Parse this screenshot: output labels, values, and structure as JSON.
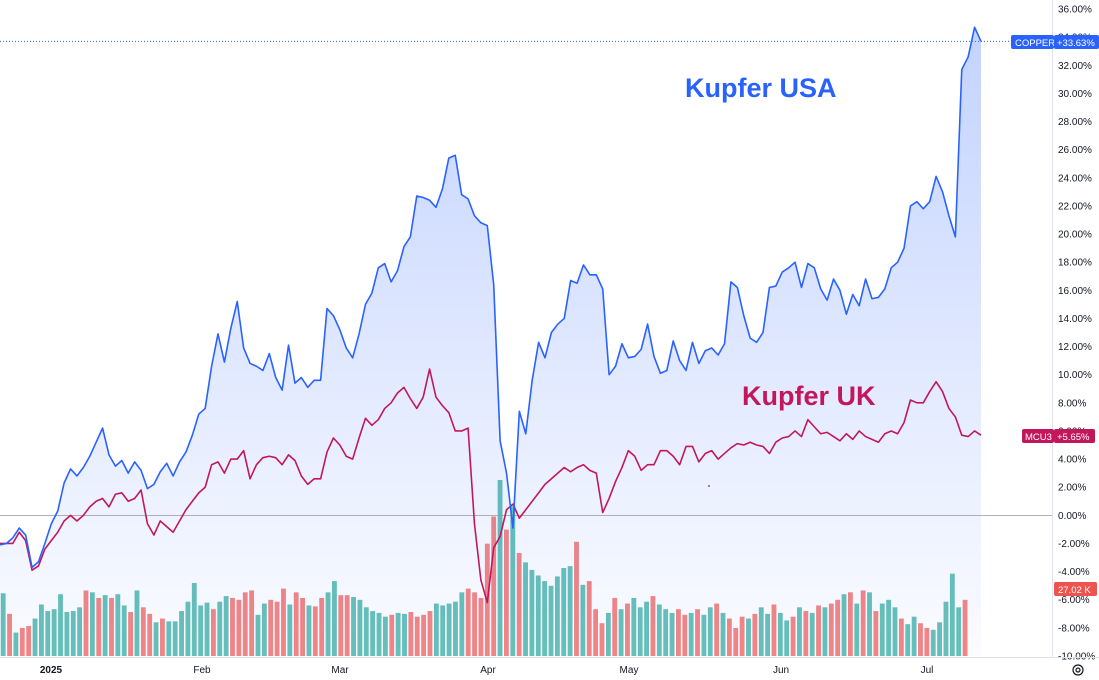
{
  "chart_data": {
    "type": "line",
    "x_ticks": [
      "2025",
      "Feb",
      "Mar",
      "Apr",
      "May",
      "Jun",
      "Jul"
    ],
    "y_ticks": [
      "36.00%",
      "34.00%",
      "32.00%",
      "30.00%",
      "28.00%",
      "26.00%",
      "24.00%",
      "22.00%",
      "20.00%",
      "18.00%",
      "16.00%",
      "14.00%",
      "12.00%",
      "10.00%",
      "8.00%",
      "6.00%",
      "4.00%",
      "2.00%",
      "0.00%",
      "-2.00%",
      "-4.00%",
      "-6.00%",
      "-8.00%",
      "-10.00%"
    ],
    "ylim": [
      -10,
      36
    ],
    "y_unit": "%",
    "grid": false,
    "annotations": {
      "copper_label": "Kupfer USA",
      "mcu3_label": "Kupfer UK"
    },
    "badges": {
      "copper_name": "COPPER",
      "copper_value": "+33.63%",
      "mcu3_name": "MCU3",
      "mcu3_value": "+5.65%",
      "volume_value": "27.02 K"
    },
    "colors": {
      "copper": "#2962ff",
      "mcu3": "#c2185b",
      "volume_up": "#26a69a",
      "volume_down": "#ef5350"
    },
    "series": [
      {
        "name": "COPPER",
        "values": [
          -2.1,
          -2.0,
          -1.6,
          -0.9,
          -1.4,
          -3.7,
          -3.3,
          -2.0,
          -0.6,
          0.3,
          2.3,
          3.3,
          2.8,
          3.4,
          4.2,
          5.2,
          6.2,
          4.3,
          3.5,
          3.9,
          3.0,
          3.8,
          3.2,
          1.9,
          2.2,
          3.1,
          3.7,
          2.8,
          3.8,
          4.5,
          5.7,
          7.2,
          7.6,
          10.6,
          12.9,
          10.9,
          13.3,
          15.2,
          11.9,
          10.8,
          10.6,
          10.3,
          11.5,
          9.8,
          8.9,
          12.1,
          9.4,
          9.8,
          9.1,
          9.6,
          9.6,
          14.7,
          14.2,
          13.2,
          11.9,
          11.2,
          12.9,
          15.0,
          15.8,
          17.6,
          17.9,
          16.6,
          17.4,
          19.1,
          19.8,
          22.7,
          22.6,
          22.4,
          21.9,
          23.2,
          25.4,
          25.6,
          22.8,
          22.5,
          21.3,
          20.8,
          20.6,
          16.4,
          5.3,
          3.0,
          -0.9,
          7.4,
          5.8,
          9.6,
          12.3,
          11.2,
          13.0,
          13.6,
          14.0,
          16.7,
          16.5,
          17.8,
          17.1,
          17.1,
          16.1,
          10.0,
          10.6,
          12.2,
          11.2,
          11.3,
          11.8,
          13.6,
          11.3,
          10.1,
          10.3,
          12.4,
          11.0,
          10.3,
          12.3,
          10.8,
          11.7,
          11.9,
          11.4,
          12.2,
          16.6,
          16.2,
          14.2,
          12.6,
          12.3,
          13.0,
          16.2,
          16.3,
          17.3,
          17.6,
          18.0,
          16.2,
          17.9,
          17.6,
          16.1,
          15.3,
          16.8,
          16.0,
          14.3,
          15.7,
          14.9,
          16.8,
          15.4,
          15.5,
          16.1,
          17.6,
          18.0,
          19.0,
          22.0,
          22.3,
          21.8,
          22.3,
          24.1,
          23.0,
          21.3,
          19.8,
          31.7,
          32.6,
          34.7,
          33.7
        ]
      },
      {
        "name": "MCU3",
        "values": [
          -2.0,
          -2.0,
          -2.0,
          -1.2,
          -1.8,
          -3.9,
          -3.6,
          -2.4,
          -1.8,
          -1.2,
          -0.4,
          0.0,
          -0.4,
          0.0,
          0.6,
          1.0,
          1.2,
          0.6,
          1.5,
          1.6,
          1.0,
          1.2,
          1.8,
          -0.6,
          -1.4,
          -0.4,
          -0.8,
          -1.2,
          -0.4,
          0.4,
          1.0,
          1.6,
          2.0,
          3.6,
          3.8,
          3.0,
          4.0,
          4.0,
          4.6,
          2.6,
          3.6,
          4.1,
          4.2,
          4.1,
          3.6,
          4.3,
          3.9,
          2.8,
          2.2,
          2.6,
          2.6,
          4.5,
          5.5,
          5.0,
          4.2,
          4.0,
          5.5,
          6.9,
          6.4,
          6.8,
          7.6,
          8.0,
          8.7,
          9.1,
          8.3,
          7.6,
          8.4,
          10.4,
          8.4,
          7.8,
          7.3,
          6.0,
          6.0,
          6.2,
          -0.6,
          -4.6,
          -6.2,
          -2.3,
          -1.5,
          0.4,
          0.8,
          -0.2,
          0.4,
          1.0,
          1.6,
          2.2,
          2.6,
          3.0,
          3.4,
          3.1,
          3.4,
          3.6,
          3.2,
          3.0,
          0.2,
          1.2,
          2.4,
          3.4,
          4.6,
          4.2,
          3.2,
          3.6,
          3.6,
          4.6,
          4.6,
          4.2,
          3.6,
          4.9,
          4.9,
          3.8,
          4.4,
          4.6,
          4.0,
          4.4,
          4.8,
          5.1,
          5.0,
          5.2,
          5.0,
          4.9,
          4.4,
          5.2,
          5.5,
          5.6,
          6.0,
          5.6,
          6.8,
          6.3,
          5.8,
          5.9,
          5.6,
          5.3,
          5.8,
          5.4,
          6.0,
          5.6,
          5.4,
          5.2,
          5.8,
          6.0,
          5.8,
          6.6,
          8.2,
          8.0,
          8.0,
          8.8,
          9.5,
          8.8,
          7.6,
          7.0,
          5.7,
          5.6,
          6.0,
          5.7
        ]
      }
    ],
    "volume": [
      0.67,
      0.45,
      0.25,
      0.3,
      0.32,
      0.4,
      0.55,
      0.48,
      0.5,
      0.66,
      0.47,
      0.48,
      0.52,
      0.7,
      0.68,
      0.62,
      0.65,
      0.62,
      0.66,
      0.54,
      0.47,
      0.7,
      0.52,
      0.45,
      0.36,
      0.4,
      0.37,
      0.37,
      0.48,
      0.58,
      0.78,
      0.54,
      0.57,
      0.5,
      0.58,
      0.64,
      0.62,
      0.6,
      0.68,
      0.7,
      0.44,
      0.56,
      0.6,
      0.58,
      0.72,
      0.55,
      0.68,
      0.62,
      0.54,
      0.53,
      0.62,
      0.68,
      0.8,
      0.65,
      0.65,
      0.63,
      0.6,
      0.52,
      0.48,
      0.46,
      0.42,
      0.44,
      0.46,
      0.45,
      0.47,
      0.42,
      0.44,
      0.48,
      0.56,
      0.54,
      0.56,
      0.58,
      0.68,
      0.72,
      0.68,
      0.62,
      1.2,
      1.49,
      1.88,
      1.35,
      1.6,
      1.1,
      1.0,
      0.92,
      0.86,
      0.8,
      0.75,
      0.85,
      0.94,
      0.96,
      1.22,
      0.76,
      0.8,
      0.5,
      0.35,
      0.46,
      0.62,
      0.5,
      0.56,
      0.62,
      0.52,
      0.58,
      0.64,
      0.55,
      0.5,
      0.46,
      0.5,
      0.44,
      0.46,
      0.5,
      0.44,
      0.52,
      0.56,
      0.46,
      0.4,
      0.3,
      0.42,
      0.4,
      0.45,
      0.52,
      0.45,
      0.55,
      0.46,
      0.38,
      0.42,
      0.52,
      0.48,
      0.46,
      0.54,
      0.52,
      0.56,
      0.6,
      0.66,
      0.68,
      0.56,
      0.7,
      0.68,
      0.48,
      0.56,
      0.6,
      0.52,
      0.4,
      0.34,
      0.42,
      0.35,
      0.3,
      0.28,
      0.36,
      0.58,
      0.88,
      0.52,
      0.6
    ],
    "volume_up": [
      1,
      0,
      1,
      0,
      0,
      1,
      1,
      1,
      1,
      1,
      1,
      1,
      1,
      0,
      1,
      0,
      1,
      0,
      1,
      1,
      0,
      1,
      0,
      0,
      1,
      0,
      1,
      1,
      1,
      1,
      1,
      1,
      1,
      0,
      1,
      1,
      0,
      0,
      0,
      0,
      1,
      1,
      0,
      0,
      0,
      1,
      0,
      0,
      1,
      0,
      0,
      1,
      1,
      0,
      0,
      1,
      1,
      1,
      1,
      1,
      1,
      0,
      1,
      1,
      0,
      0,
      0,
      0,
      1,
      1,
      1,
      1,
      1,
      0,
      0,
      0,
      0,
      0,
      1,
      0,
      1,
      0,
      1,
      1,
      1,
      1,
      1,
      1,
      1,
      1,
      0,
      1,
      0,
      0,
      0,
      1,
      0,
      1,
      0,
      1,
      1,
      1,
      0,
      1,
      1,
      1,
      0,
      0,
      1,
      0,
      1,
      1,
      0,
      1,
      0,
      0,
      0,
      1,
      0,
      1,
      1,
      0,
      1,
      1,
      0,
      1,
      0,
      1,
      0,
      1,
      0,
      0,
      1,
      0,
      1,
      0,
      1,
      0,
      1,
      1,
      1,
      0,
      1,
      1,
      0,
      0,
      1,
      1,
      1,
      1,
      1,
      0
    ]
  }
}
